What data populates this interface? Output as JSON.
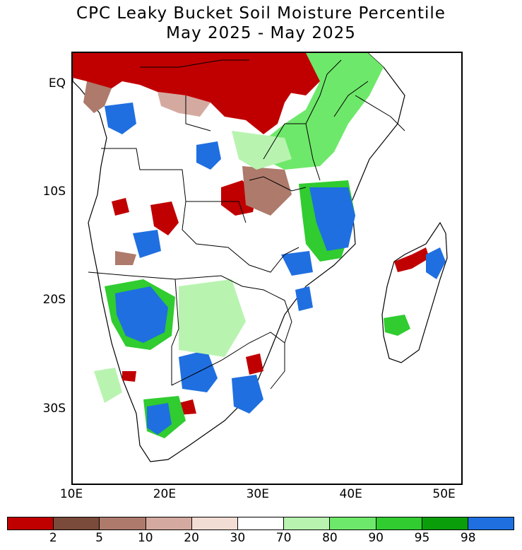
{
  "title_line1": "CPC Leaky Bucket Soil Moisture Percentile",
  "title_line2": "May 2025 - May 2025",
  "y_axis": [
    {
      "label": "EQ",
      "lat": 0
    },
    {
      "label": "10S",
      "lat": -10
    },
    {
      "label": "20S",
      "lat": -20
    },
    {
      "label": "30S",
      "lat": -30
    }
  ],
  "x_axis": [
    {
      "label": "10E",
      "lon": 10
    },
    {
      "label": "20E",
      "lon": 20
    },
    {
      "label": "30E",
      "lon": 30
    },
    {
      "label": "40E",
      "lon": 40
    },
    {
      "label": "50E",
      "lon": 50
    }
  ],
  "extent": {
    "lon_min": 10,
    "lon_max": 52,
    "lat_max": 3,
    "lat_min": -37
  },
  "colorbar": {
    "colors": [
      "#c00000",
      "#7a4a3a",
      "#ad7a6c",
      "#d4aaa0",
      "#f2ddd4",
      "#ffffff",
      "#b8f4b0",
      "#6ee86a",
      "#30cc30",
      "#0a9e0a",
      "#1f6fe0"
    ],
    "labels": [
      "2",
      "5",
      "10",
      "20",
      "30",
      "70",
      "80",
      "90",
      "95",
      "98"
    ]
  }
}
